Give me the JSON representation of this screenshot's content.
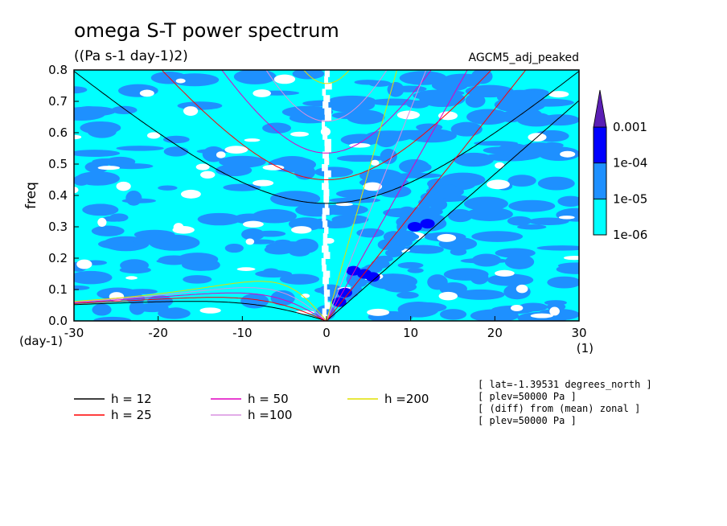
{
  "chart_data": {
    "type": "heatmap",
    "title": "omega S-T power spectrum",
    "subtitle": "((Pa s-1 day-1)2)",
    "experiment_label": "AGCM5_adj_peaked",
    "xlabel": "wvn",
    "x_unit": "(1)",
    "ylabel": "freq",
    "y_unit": "(day-1)",
    "xlim": [
      -30,
      30
    ],
    "ylim": [
      0,
      0.8
    ],
    "xticks": [
      "-30",
      "-20",
      "-10",
      "0",
      "10",
      "20",
      "30"
    ],
    "yticks": [
      "0.0",
      "0.1",
      "0.2",
      "0.3",
      "0.4",
      "0.5",
      "0.6",
      "0.7",
      "0.8"
    ],
    "colorbar": {
      "levels": [
        "1e-06",
        "1e-05",
        "1e-04",
        "0.001"
      ],
      "colors": [
        "#00ffff",
        "#1e90ff",
        "#0000ff",
        "#00008b",
        "#5a1eb4"
      ]
    },
    "dispersion_curves": [
      {
        "name": "h = 12",
        "h": 12,
        "color": "#000000"
      },
      {
        "name": "h = 25",
        "h": 25,
        "color": "#ff0000"
      },
      {
        "name": "h = 50",
        "h": 50,
        "color": "#e000c0"
      },
      {
        "name": "h =100",
        "h": 100,
        "color": "#d890e0"
      },
      {
        "name": "h =200",
        "h": 200,
        "color": "#e0e000"
      }
    ],
    "annotations": [
      "[ lat=-1.39531 degrees_north ]",
      "[ plev=50000 Pa ]",
      "[ (diff) from (mean) zonal ]",
      "[ plev=50000 Pa ]"
    ]
  }
}
